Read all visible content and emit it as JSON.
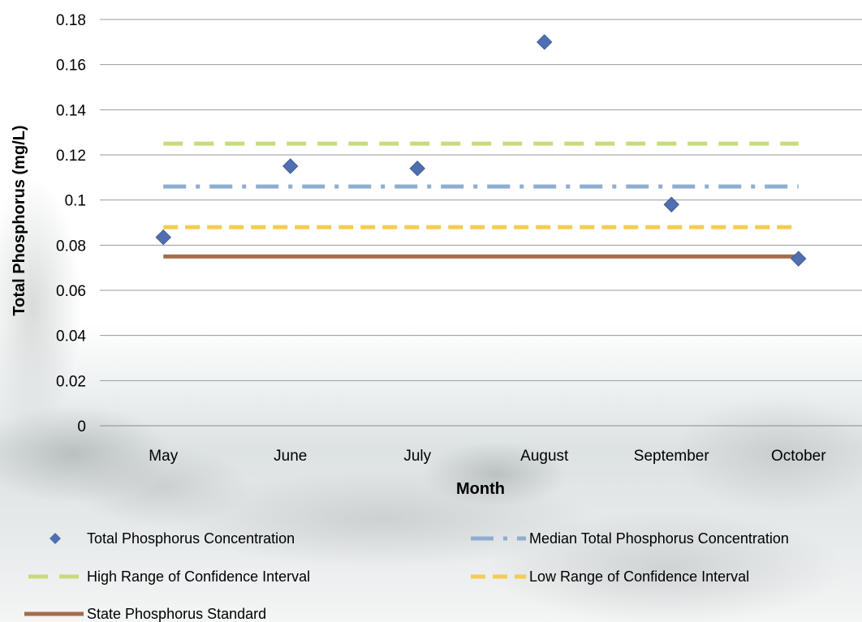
{
  "chart_data": {
    "type": "scatter",
    "xlabel": "Month",
    "ylabel": "Total Phosphorus (mg/L)",
    "categories": [
      "May",
      "June",
      "July",
      "August",
      "September",
      "October"
    ],
    "y_ticks": [
      "0",
      "0.02",
      "0.04",
      "0.06",
      "0.08",
      "0.1",
      "0.12",
      "0.14",
      "0.16",
      "0.18"
    ],
    "ylim": [
      0,
      0.18
    ],
    "grid": true,
    "legend_position": "bottom",
    "series": [
      {
        "name": "Total Phosphorus Concentration",
        "kind": "points",
        "marker": "diamond",
        "color": "#4f6fb0",
        "values": [
          0.0835,
          0.115,
          0.114,
          0.17,
          0.098,
          0.074
        ]
      },
      {
        "name": "Median Total Phosphorus Concentration",
        "kind": "line",
        "style": "dash-dot",
        "color": "#8eaed0",
        "values": [
          0.106,
          0.106,
          0.106,
          0.106,
          0.106,
          0.106
        ]
      },
      {
        "name": "High Range of Confidence Interval",
        "kind": "line",
        "style": "long-dash",
        "color": "#c6dc7a",
        "values": [
          0.125,
          0.125,
          0.125,
          0.125,
          0.125,
          0.125
        ]
      },
      {
        "name": "Low Range of Confidence Interval",
        "kind": "line",
        "style": "dash",
        "color": "#f4cc4f",
        "values": [
          0.088,
          0.088,
          0.088,
          0.088,
          0.088,
          0.088
        ]
      },
      {
        "name": "State Phosphorus Standard",
        "kind": "line",
        "style": "solid",
        "color": "#a56b4b",
        "values": [
          0.075,
          0.075,
          0.075,
          0.075,
          0.075,
          0.075
        ]
      }
    ]
  }
}
